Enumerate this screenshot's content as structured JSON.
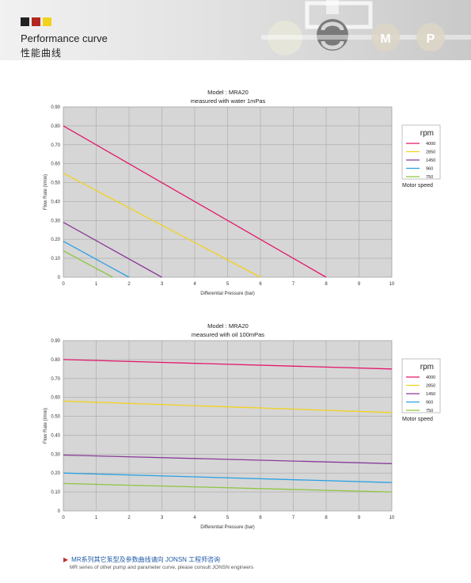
{
  "header": {
    "title": "Performance curve",
    "subtitle": "性能曲线",
    "badges": [
      "M",
      "P"
    ],
    "colors": {
      "square1": "#222222",
      "square2": "#b3261e",
      "square3": "#f2d21b"
    }
  },
  "chart_data": [
    {
      "type": "line",
      "title": "Model : MRA20",
      "subtitle": "measured with water 1mPas",
      "xlabel": "Differential Pressure (bar)",
      "ylabel": "Flow Rate (l/min)",
      "xlim": [
        0,
        10
      ],
      "ylim": [
        0,
        0.9
      ],
      "xticks": [
        "0",
        "1",
        "2",
        "3",
        "4",
        "5",
        "6",
        "7",
        "8",
        "9",
        "10"
      ],
      "yticks": [
        "0",
        "0.10",
        "0.20",
        "0.30",
        "0.40",
        "0.50",
        "0.60",
        "0.70",
        "0.80",
        "0.90"
      ],
      "grid": true,
      "legend": {
        "title": "rpm",
        "note": "Motor speed",
        "position": "right"
      },
      "series": [
        {
          "name": "4000",
          "color": "#e3186c",
          "x": [
            0,
            8
          ],
          "y": [
            0.8,
            0
          ]
        },
        {
          "name": "2850",
          "color": "#f2d21b",
          "x": [
            0,
            6
          ],
          "y": [
            0.55,
            0
          ]
        },
        {
          "name": "1450",
          "color": "#8a3b9a",
          "x": [
            0,
            3
          ],
          "y": [
            0.29,
            0
          ]
        },
        {
          "name": "960",
          "color": "#2aa1e3",
          "x": [
            0,
            2
          ],
          "y": [
            0.19,
            0
          ]
        },
        {
          "name": "750",
          "color": "#8dc63f",
          "x": [
            0,
            1.5
          ],
          "y": [
            0.14,
            0
          ]
        }
      ]
    },
    {
      "type": "line",
      "title": "Model : MRA20",
      "subtitle": "measured with oil 100mPas",
      "xlabel": "Differential Pressure (bar)",
      "ylabel": "Flow Rate (l/min)",
      "xlim": [
        0,
        10
      ],
      "ylim": [
        0,
        0.9
      ],
      "xticks": [
        "0",
        "1",
        "2",
        "3",
        "4",
        "5",
        "6",
        "7",
        "8",
        "9",
        "10"
      ],
      "yticks": [
        "0",
        "0.10",
        "0.20",
        "0.30",
        "0.40",
        "0.50",
        "0.60",
        "0.70",
        "0.80",
        "0.90"
      ],
      "grid": true,
      "legend": {
        "title": "rpm",
        "note": "Motor speed",
        "position": "right"
      },
      "series": [
        {
          "name": "4000",
          "color": "#e3186c",
          "x": [
            0,
            10
          ],
          "y": [
            0.8,
            0.75
          ]
        },
        {
          "name": "2850",
          "color": "#f2d21b",
          "x": [
            0,
            10
          ],
          "y": [
            0.58,
            0.52
          ]
        },
        {
          "name": "1450",
          "color": "#8a3b9a",
          "x": [
            0,
            10
          ],
          "y": [
            0.295,
            0.25
          ]
        },
        {
          "name": "960",
          "color": "#2aa1e3",
          "x": [
            0,
            10
          ],
          "y": [
            0.2,
            0.15
          ]
        },
        {
          "name": "750",
          "color": "#8dc63f",
          "x": [
            0,
            10
          ],
          "y": [
            0.145,
            0.1
          ]
        }
      ]
    }
  ],
  "footer": {
    "cn": "MR系列其它泵型及参数曲线请向 JONSN 工程师咨询",
    "en": "MR series of other pump and parameter curve, please consult JONSN engineers"
  }
}
